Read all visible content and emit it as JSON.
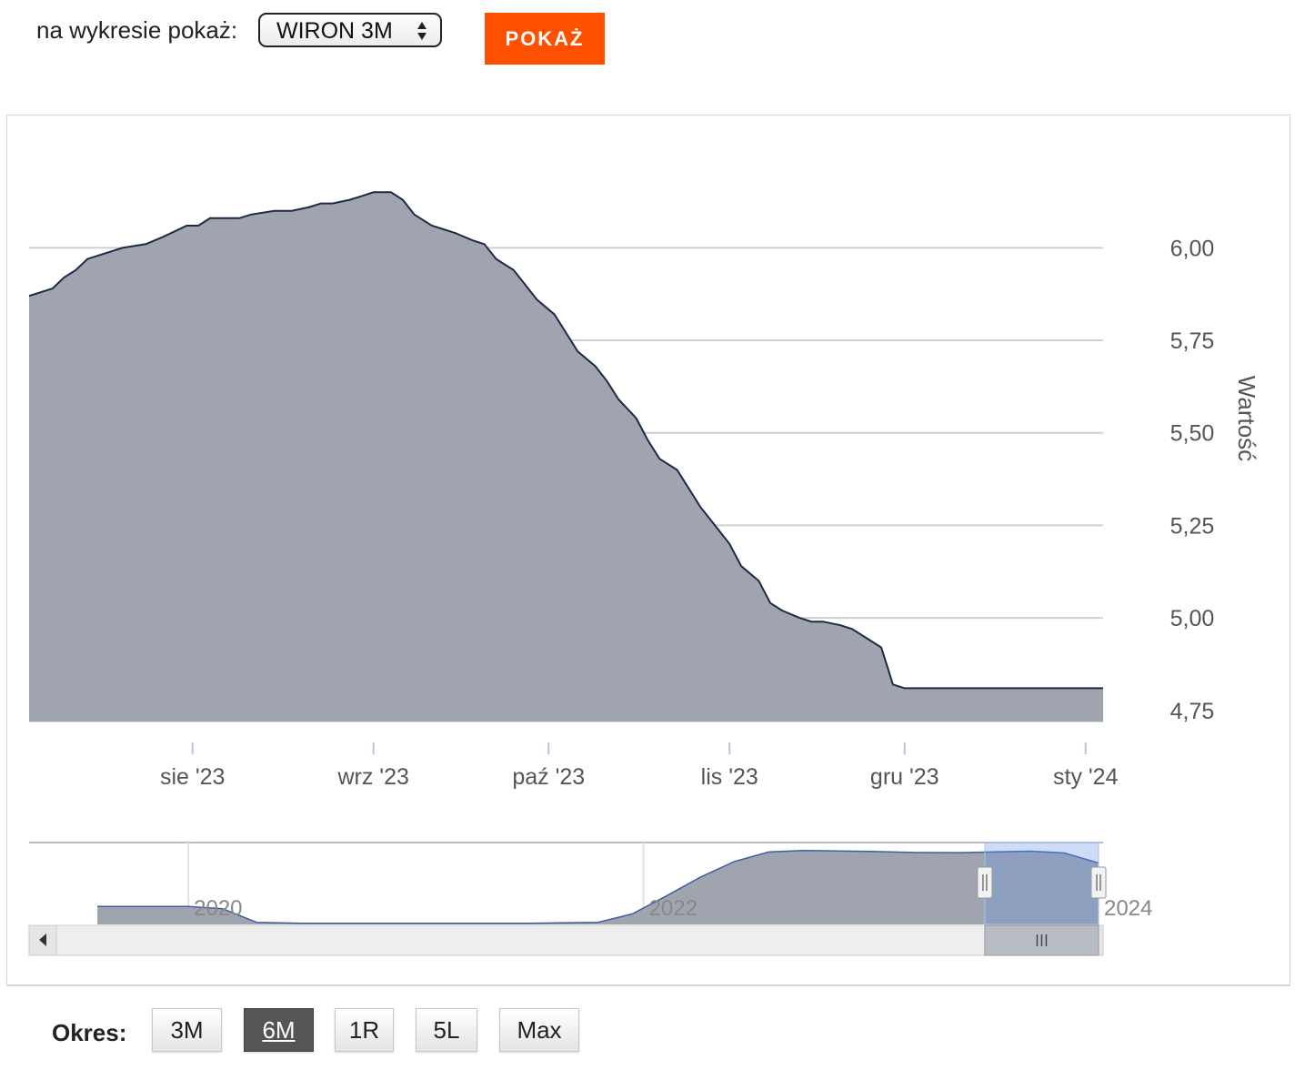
{
  "controls": {
    "show_label": "na wykresie pokaż:",
    "selected_index": "WIRON 3M",
    "show_button": "POKAŻ"
  },
  "period": {
    "label": "Okres:",
    "buttons": [
      "3M",
      "6M",
      "1R",
      "5L",
      "Max"
    ],
    "active": "6M"
  },
  "colors": {
    "area_fill": "#a0a4ae",
    "line": "#1c2a45",
    "navigator_fill": "#a0a4ae",
    "navigator_line": "#3d5f9e",
    "navigator_mask": "rgba(102,153,230,0.33)",
    "accent": "#ff5000"
  },
  "chart_data": {
    "type": "area",
    "title": "",
    "xlabel": "",
    "ylabel": "Wartość",
    "ylim": [
      4.72,
      6.35
    ],
    "y_ticks": [
      "6,00",
      "5,75",
      "5,50",
      "5,25",
      "5,00",
      "4,75"
    ],
    "y_tick_values": [
      6.0,
      5.75,
      5.5,
      5.25,
      5.0,
      4.75
    ],
    "x_ticks": [
      "sie '23",
      "wrz '23",
      "paź '23",
      "lis '23",
      "gru '23",
      "sty '24"
    ],
    "x_tick_dates": [
      "2023-08-01",
      "2023-09-01",
      "2023-10-01",
      "2023-11-01",
      "2023-12-01",
      "2024-01-01"
    ],
    "x_range": [
      "2023-07-04",
      "2024-01-04"
    ],
    "grid": true,
    "legend": "none",
    "series": [
      {
        "x": [
          "2023-07-04",
          "2023-07-08",
          "2023-07-10",
          "2023-07-12",
          "2023-07-14",
          "2023-07-18",
          "2023-07-20",
          "2023-07-24",
          "2023-07-27",
          "2023-07-31",
          "2023-08-02",
          "2023-08-04",
          "2023-08-07",
          "2023-08-09",
          "2023-08-11",
          "2023-08-15",
          "2023-08-18",
          "2023-08-21",
          "2023-08-23",
          "2023-08-25",
          "2023-08-28",
          "2023-08-30",
          "2023-09-01",
          "2023-09-04",
          "2023-09-06",
          "2023-09-08",
          "2023-09-11",
          "2023-09-13",
          "2023-09-15",
          "2023-09-18",
          "2023-09-20",
          "2023-09-22",
          "2023-09-25",
          "2023-09-27",
          "2023-09-29",
          "2023-10-02",
          "2023-10-04",
          "2023-10-06",
          "2023-10-09",
          "2023-10-11",
          "2023-10-13",
          "2023-10-16",
          "2023-10-18",
          "2023-10-20",
          "2023-10-23",
          "2023-10-25",
          "2023-10-27",
          "2023-10-30",
          "2023-11-01",
          "2023-11-03",
          "2023-11-06",
          "2023-11-08",
          "2023-11-10",
          "2023-11-13",
          "2023-11-15",
          "2023-11-17",
          "2023-11-20",
          "2023-11-22",
          "2023-11-24",
          "2023-11-27",
          "2023-11-29",
          "2023-12-01",
          "2023-12-04",
          "2023-12-06",
          "2023-12-08",
          "2023-12-11",
          "2023-12-13",
          "2023-12-15",
          "2023-12-18",
          "2023-12-20",
          "2023-12-22",
          "2023-12-25",
          "2023-12-27",
          "2023-12-29",
          "2024-01-01",
          "2024-01-02",
          "2024-01-04"
        ],
        "values": [
          5.87,
          5.89,
          5.92,
          5.94,
          5.97,
          5.99,
          6.0,
          6.01,
          6.03,
          6.06,
          6.06,
          6.08,
          6.08,
          6.08,
          6.09,
          6.1,
          6.1,
          6.11,
          6.12,
          6.12,
          6.13,
          6.14,
          6.15,
          6.15,
          6.13,
          6.09,
          6.06,
          6.05,
          6.04,
          6.02,
          6.01,
          5.97,
          5.94,
          5.9,
          5.86,
          5.82,
          5.77,
          5.72,
          5.68,
          5.64,
          5.59,
          5.54,
          5.48,
          5.43,
          5.4,
          5.35,
          5.3,
          5.24,
          5.2,
          5.14,
          5.1,
          5.04,
          5.02,
          5.0,
          4.99,
          4.99,
          4.98,
          4.97,
          4.95,
          4.92,
          4.82,
          4.81,
          4.81,
          4.81,
          4.81,
          4.81,
          4.81,
          4.81,
          4.81,
          4.81,
          4.81,
          4.81,
          4.81,
          4.81,
          4.81,
          4.81,
          4.81
        ]
      }
    ]
  },
  "navigator": {
    "labels": [
      "2020",
      "2022",
      "2024"
    ],
    "label_years": [
      2020,
      2022,
      2024
    ],
    "x_range": [
      2019.3,
      2024.02
    ],
    "series": {
      "x": [
        2019.3,
        2019.6,
        2019.9,
        2020.0,
        2020.15,
        2020.3,
        2020.5,
        2021.0,
        2021.5,
        2021.8,
        2021.95,
        2022.1,
        2022.25,
        2022.4,
        2022.55,
        2022.7,
        2022.85,
        2023.0,
        2023.2,
        2023.4,
        2023.55,
        2023.7,
        2023.85,
        2024.0
      ],
      "values": [
        1.72,
        1.72,
        1.72,
        1.71,
        1.5,
        0.2,
        0.1,
        0.1,
        0.1,
        0.2,
        1.0,
        2.7,
        4.5,
        6.0,
        6.9,
        7.05,
        6.99,
        6.95,
        6.85,
        6.84,
        6.92,
        6.98,
        6.8,
        5.85
      ]
    },
    "selection": [
      2023.5,
      2024.0
    ]
  }
}
